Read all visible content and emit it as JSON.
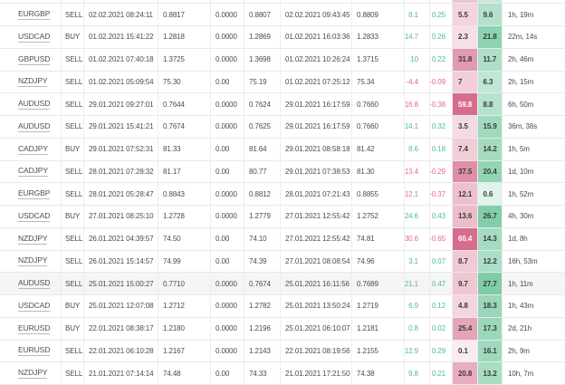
{
  "table": {
    "top_partial_row": {
      "mae_color": "#efc4d1",
      "mfe_color": "#cbe7d7"
    },
    "colors": {
      "positive_text": "#4ebd92",
      "negative_text": "#e2698b",
      "mae_scale_min": "#faeef2",
      "mae_scale_max": "#d76d8e",
      "mae_scale_value_max": 60,
      "mfe_scale_min": "#eaf6f0",
      "mfe_scale_max": "#79cba4",
      "mfe_scale_value_max": 30,
      "row_highlight": "#f5f5f5",
      "row_border": "#e9e9e9",
      "column_border": "#ededed"
    },
    "rows": [
      {
        "symbol": "EURGBP",
        "side": "SELL",
        "open_time": "02.02.2021 08:24:11",
        "open_price": "0.8817",
        "stop_loss": "0.0000",
        "take_profit": "0.8807",
        "close_time": "02.02.2021 09:43:45",
        "close_price": "0.8809",
        "pips": "8.1",
        "percent": "0.25",
        "mae": "5.5",
        "mfe": "9.6",
        "duration": "1h, 19m",
        "highlight": false
      },
      {
        "symbol": "USDCAD",
        "side": "BUY",
        "open_time": "01.02.2021 15:41:22",
        "open_price": "1.2818",
        "stop_loss": "0.0000",
        "take_profit": "1.2869",
        "close_time": "01.02.2021 16:03:36",
        "close_price": "1.2833",
        "pips": "14.7",
        "percent": "0.26",
        "mae": "2.3",
        "mfe": "21.8",
        "duration": "22m, 14s",
        "highlight": false
      },
      {
        "symbol": "GBPUSD",
        "side": "SELL",
        "open_time": "01.02.2021 07:40:18",
        "open_price": "1.3725",
        "stop_loss": "0.0000",
        "take_profit": "1.3698",
        "close_time": "01.02.2021 10:26:24",
        "close_price": "1.3715",
        "pips": "10",
        "percent": "0.22",
        "mae": "31.8",
        "mfe": "11.7",
        "duration": "2h, 46m",
        "highlight": false
      },
      {
        "symbol": "NZDJPY",
        "side": "SELL",
        "open_time": "01.02.2021 05:09:54",
        "open_price": "75.30",
        "stop_loss": "0.00",
        "take_profit": "75.19",
        "close_time": "01.02.2021 07:25:12",
        "close_price": "75.34",
        "pips": "-4.4",
        "percent": "-0.09",
        "mae": "7",
        "mfe": "6.3",
        "duration": "2h, 15m",
        "highlight": false
      },
      {
        "symbol": "AUDUSD",
        "side": "SELL",
        "open_time": "29.01.2021 09:27:01",
        "open_price": "0.7644",
        "stop_loss": "0.0000",
        "take_profit": "0.7624",
        "close_time": "29.01.2021 16:17:59",
        "close_price": "0.7660",
        "pips": "-16.8",
        "percent": "-0.38",
        "mae": "59.8",
        "mfe": "8.8",
        "duration": "6h, 50m",
        "highlight": false
      },
      {
        "symbol": "AUDUSD",
        "side": "SELL",
        "open_time": "29.01.2021 15:41:21",
        "open_price": "0.7674",
        "stop_loss": "0.0000",
        "take_profit": "0.7625",
        "close_time": "29.01.2021 16:17:59",
        "close_price": "0.7660",
        "pips": "14.1",
        "percent": "0.32",
        "mae": "3.5",
        "mfe": "15.9",
        "duration": "36m, 38s",
        "highlight": false
      },
      {
        "symbol": "CADJPY",
        "side": "BUY",
        "open_time": "29.01.2021 07:52:31",
        "open_price": "81.33",
        "stop_loss": "0.00",
        "take_profit": "81.64",
        "close_time": "29.01.2021 08:58:18",
        "close_price": "81.42",
        "pips": "8.6",
        "percent": "0.18",
        "mae": "7.4",
        "mfe": "14.2",
        "duration": "1h, 5m",
        "highlight": false
      },
      {
        "symbol": "CADJPY",
        "side": "SELL",
        "open_time": "28.01.2021 07:28:32",
        "open_price": "81.17",
        "stop_loss": "0.00",
        "take_profit": "80.77",
        "close_time": "29.01.2021 07:38:53",
        "close_price": "81.30",
        "pips": "-13.4",
        "percent": "-0.29",
        "mae": "37.5",
        "mfe": "20.4",
        "duration": "1d, 10m",
        "highlight": false
      },
      {
        "symbol": "EURGBP",
        "side": "SELL",
        "open_time": "28.01.2021 05:28:47",
        "open_price": "0.8843",
        "stop_loss": "0.0000",
        "take_profit": "0.8812",
        "close_time": "28.01.2021 07:21:43",
        "close_price": "0.8855",
        "pips": "-12.1",
        "percent": "-0.37",
        "mae": "12.1",
        "mfe": "0.6",
        "duration": "1h, 52m",
        "highlight": false
      },
      {
        "symbol": "USDCAD",
        "side": "BUY",
        "open_time": "27.01.2021 08:25:10",
        "open_price": "1.2728",
        "stop_loss": "0.0000",
        "take_profit": "1.2779",
        "close_time": "27.01.2021 12:55:42",
        "close_price": "1.2752",
        "pips": "24.6",
        "percent": "0.43",
        "mae": "13.6",
        "mfe": "26.7",
        "duration": "4h, 30m",
        "highlight": false
      },
      {
        "symbol": "NZDJPY",
        "side": "SELL",
        "open_time": "26.01.2021 04:39:57",
        "open_price": "74.50",
        "stop_loss": "0.00",
        "take_profit": "74.10",
        "close_time": "27.01.2021 12:55:42",
        "close_price": "74.81",
        "pips": "-30.6",
        "percent": "-0.65",
        "mae": "60.4",
        "mfe": "14.3",
        "duration": "1d, 8h",
        "highlight": false
      },
      {
        "symbol": "NZDJPY",
        "side": "SELL",
        "open_time": "26.01.2021 15:14:57",
        "open_price": "74.99",
        "stop_loss": "0.00",
        "take_profit": "74.39",
        "close_time": "27.01.2021 08:08:54",
        "close_price": "74.96",
        "pips": "3.1",
        "percent": "0.07",
        "mae": "8.7",
        "mfe": "12.2",
        "duration": "16h, 53m",
        "highlight": false
      },
      {
        "symbol": "AUDUSD",
        "side": "SELL",
        "open_time": "25.01.2021 15:00:27",
        "open_price": "0.7710",
        "stop_loss": "0.0000",
        "take_profit": "0.7674",
        "close_time": "25.01.2021 16:11:56",
        "close_price": "0.7689",
        "pips": "21.1",
        "percent": "0.47",
        "mae": "9.7",
        "mfe": "27.7",
        "duration": "1h, 11m",
        "highlight": true
      },
      {
        "symbol": "USDCAD",
        "side": "BUY",
        "open_time": "25.01.2021 12:07:08",
        "open_price": "1.2712",
        "stop_loss": "0.0000",
        "take_profit": "1.2782",
        "close_time": "25.01.2021 13:50:24",
        "close_price": "1.2719",
        "pips": "6.9",
        "percent": "0.12",
        "mae": "4.8",
        "mfe": "18.3",
        "duration": "1h, 43m",
        "highlight": false
      },
      {
        "symbol": "EURUSD",
        "side": "BUY",
        "open_time": "22.01.2021 08:38:17",
        "open_price": "1.2180",
        "stop_loss": "0.0000",
        "take_profit": "1.2196",
        "close_time": "25.01.2021 06:10:07",
        "close_price": "1.2181",
        "pips": "0.8",
        "percent": "0.02",
        "mae": "25.4",
        "mfe": "17.3",
        "duration": "2d, 21h",
        "highlight": false
      },
      {
        "symbol": "EURUSD",
        "side": "SELL",
        "open_time": "22.01.2021 06:10:28",
        "open_price": "1.2167",
        "stop_loss": "0.0000",
        "take_profit": "1.2143",
        "close_time": "22.01.2021 08:19:56",
        "close_price": "1.2155",
        "pips": "12.9",
        "percent": "0.29",
        "mae": "0.1",
        "mfe": "16.1",
        "duration": "2h, 9m",
        "highlight": false
      },
      {
        "symbol": "NZDJPY",
        "side": "SELL",
        "open_time": "21.01.2021 07:14:14",
        "open_price": "74.48",
        "stop_loss": "0.00",
        "take_profit": "74.33",
        "close_time": "21.01.2021 17:21:50",
        "close_price": "74.38",
        "pips": "9.8",
        "percent": "0.21",
        "mae": "20.8",
        "mfe": "13.2",
        "duration": "10h, 7m",
        "highlight": false
      }
    ]
  }
}
